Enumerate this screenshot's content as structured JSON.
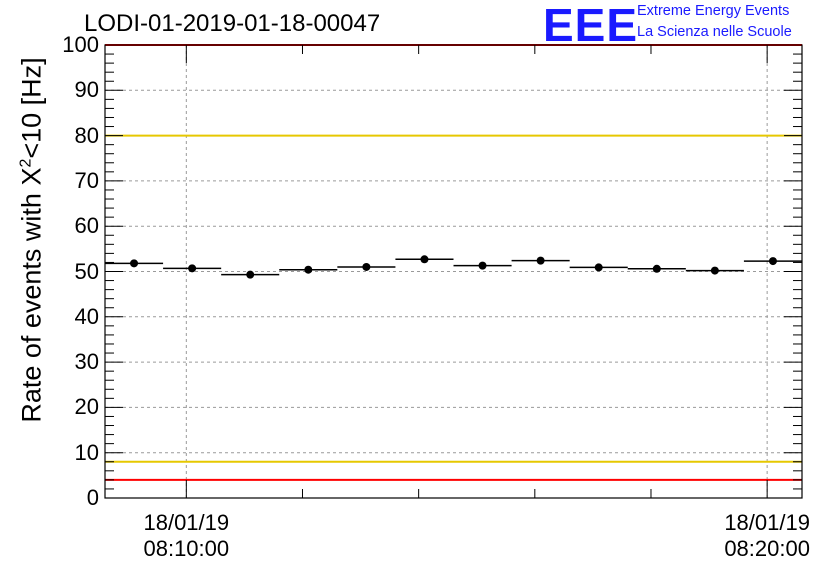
{
  "chart_data": {
    "type": "scatter",
    "title": "LODI-01-2019-01-18-00047",
    "ylabel_pre": "Rate of events with X",
    "ylabel_sup": "2",
    "ylabel_post": "<10 [Hz]",
    "ylim": [
      0,
      100
    ],
    "yticks": [
      "0",
      "10",
      "20",
      "30",
      "40",
      "50",
      "60",
      "70",
      "80",
      "90",
      "100"
    ],
    "xticks": [
      {
        "date": "18/01/19",
        "time": "08:10:00"
      },
      {
        "date": "18/01/19",
        "time": "08:20:00"
      }
    ],
    "grid": true,
    "series": [
      {
        "values": [
          51.8,
          50.7,
          49.3,
          50.4,
          51.0,
          52.7,
          51.3,
          52.4,
          50.9,
          50.6,
          50.2,
          52.3
        ]
      }
    ],
    "reference_lines": [
      {
        "value": 100,
        "color": "#ff0000"
      },
      {
        "value": 80,
        "color": "#e6c800"
      },
      {
        "value": 8,
        "color": "#e6c800"
      },
      {
        "value": 4,
        "color": "#ff0000"
      }
    ]
  },
  "logo": {
    "mark": "EEE",
    "line1": "Extreme Energy Events",
    "line2": "La Scienza nelle Scuole",
    "color": "#1a1aff"
  }
}
